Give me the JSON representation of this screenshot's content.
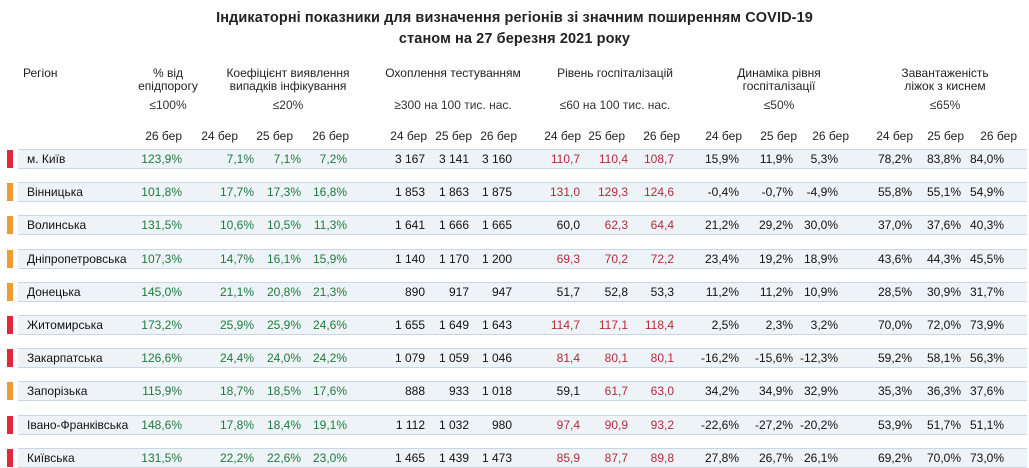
{
  "title_line1": "Індикаторні показники для визначення регіонів зі значним поширенням COVID-19",
  "title_line2": "станом на 27 березня 2021 року",
  "colors": {
    "red_marker": "#e0283a",
    "orange_marker": "#f29a2e",
    "green_text": "#1f7a3a",
    "red_text": "#b52a3a",
    "band": "#eef3f8"
  },
  "columns": {
    "region": "Регіон",
    "threshold_pct": {
      "line1": "% від",
      "line2": "епідпорогу",
      "limit": "≤100%"
    },
    "detection": {
      "line1": "Коефіцієнт виявлення",
      "line2": "випадків інфікування",
      "limit": "≤20%"
    },
    "testing": {
      "line1": "Охоплення тестуванням",
      "limit": "≥300 на 100 тис. нас."
    },
    "hosp": {
      "line1": "Рівень госпіталізацій",
      "limit": "≤60 на 100 тис. нас."
    },
    "dynamics": {
      "line1": "Динаміка рівня",
      "line2": "госпіталізації",
      "limit": "≤50%"
    },
    "oxygen": {
      "line1": "Завантаженість",
      "line2": "ліжок з киснем",
      "limit": "≤65%"
    }
  },
  "dates": {
    "d24": "24 бер",
    "d25": "25 бер",
    "d26": "26 бер"
  },
  "rows": [
    {
      "marker": "red",
      "name": "м. Київ",
      "thr": "123,9%",
      "det": [
        "7,1%",
        "7,1%",
        "7,2%"
      ],
      "test": [
        "3 167",
        "3 141",
        "3 160"
      ],
      "hosp": [
        "110,7",
        "110,4",
        "108,7"
      ],
      "dyn": [
        "15,9%",
        "11,9%",
        "5,3%"
      ],
      "oxy": [
        "78,2%",
        "83,8%",
        "84,0%"
      ]
    },
    {
      "marker": "orange",
      "name": "Вінницька",
      "thr": "101,8%",
      "det": [
        "17,7%",
        "17,3%",
        "16,8%"
      ],
      "test": [
        "1 853",
        "1 863",
        "1 875"
      ],
      "hosp": [
        "131,0",
        "129,3",
        "124,6"
      ],
      "dyn": [
        "-0,4%",
        "-0,7%",
        "-4,9%"
      ],
      "oxy": [
        "55,8%",
        "55,1%",
        "54,9%"
      ]
    },
    {
      "marker": "orange",
      "name": "Волинська",
      "thr": "131,5%",
      "det": [
        "10,6%",
        "10,5%",
        "11,3%"
      ],
      "test": [
        "1 641",
        "1 666",
        "1 665"
      ],
      "hosp": [
        "60,0",
        "62,3",
        "64,4"
      ],
      "dyn": [
        "21,2%",
        "29,2%",
        "30,0%"
      ],
      "oxy": [
        "37,0%",
        "37,6%",
        "40,3%"
      ]
    },
    {
      "marker": "orange",
      "name": "Дніпропетровська",
      "thr": "107,3%",
      "det": [
        "14,7%",
        "16,1%",
        "15,9%"
      ],
      "test": [
        "1 140",
        "1 170",
        "1 200"
      ],
      "hosp": [
        "69,3",
        "70,2",
        "72,2"
      ],
      "dyn": [
        "23,4%",
        "19,2%",
        "18,9%"
      ],
      "oxy": [
        "43,6%",
        "44,3%",
        "45,5%"
      ]
    },
    {
      "marker": "orange",
      "name": "Донецька",
      "thr": "145,0%",
      "det": [
        "21,1%",
        "20,8%",
        "21,3%"
      ],
      "test": [
        "890",
        "917",
        "947"
      ],
      "hosp": [
        "51,7",
        "52,8",
        "53,3"
      ],
      "dyn": [
        "11,2%",
        "11,2%",
        "10,9%"
      ],
      "oxy": [
        "28,5%",
        "30,9%",
        "31,7%"
      ]
    },
    {
      "marker": "red",
      "name": "Житомирська",
      "thr": "173,2%",
      "det": [
        "25,9%",
        "25,9%",
        "24,6%"
      ],
      "test": [
        "1 655",
        "1 649",
        "1 643"
      ],
      "hosp": [
        "114,7",
        "117,1",
        "118,4"
      ],
      "dyn": [
        "2,5%",
        "2,3%",
        "3,2%"
      ],
      "oxy": [
        "70,0%",
        "72,0%",
        "73,9%"
      ]
    },
    {
      "marker": "red",
      "name": "Закарпатська",
      "thr": "126,6%",
      "det": [
        "24,4%",
        "24,0%",
        "24,2%"
      ],
      "test": [
        "1 079",
        "1 059",
        "1 046"
      ],
      "hosp": [
        "81,4",
        "80,1",
        "80,1"
      ],
      "dyn": [
        "-16,2%",
        "-15,6%",
        "-12,3%"
      ],
      "oxy": [
        "59,2%",
        "58,1%",
        "56,3%"
      ]
    },
    {
      "marker": "orange",
      "name": "Запорізька",
      "thr": "115,9%",
      "det": [
        "18,7%",
        "18,5%",
        "17,6%"
      ],
      "test": [
        "888",
        "933",
        "1 018"
      ],
      "hosp": [
        "59,1",
        "61,7",
        "63,0"
      ],
      "dyn": [
        "34,2%",
        "34,9%",
        "32,9%"
      ],
      "oxy": [
        "35,3%",
        "36,3%",
        "37,6%"
      ]
    },
    {
      "marker": "red",
      "name": "Івано-Франківська",
      "thr": "148,6%",
      "det": [
        "17,8%",
        "18,4%",
        "19,1%"
      ],
      "test": [
        "1 112",
        "1 032",
        "980"
      ],
      "hosp": [
        "97,4",
        "90,9",
        "93,2"
      ],
      "dyn": [
        "-22,6%",
        "-27,2%",
        "-20,2%"
      ],
      "oxy": [
        "53,9%",
        "51,7%",
        "51,1%"
      ]
    },
    {
      "marker": "red",
      "name": "Київська",
      "thr": "131,5%",
      "det": [
        "22,2%",
        "22,6%",
        "23,0%"
      ],
      "test": [
        "1 465",
        "1 439",
        "1 473"
      ],
      "hosp": [
        "85,9",
        "87,7",
        "89,8"
      ],
      "dyn": [
        "27,8%",
        "26,7%",
        "26,1%"
      ],
      "oxy": [
        "69,2%",
        "70,0%",
        "73,0%"
      ]
    }
  ]
}
